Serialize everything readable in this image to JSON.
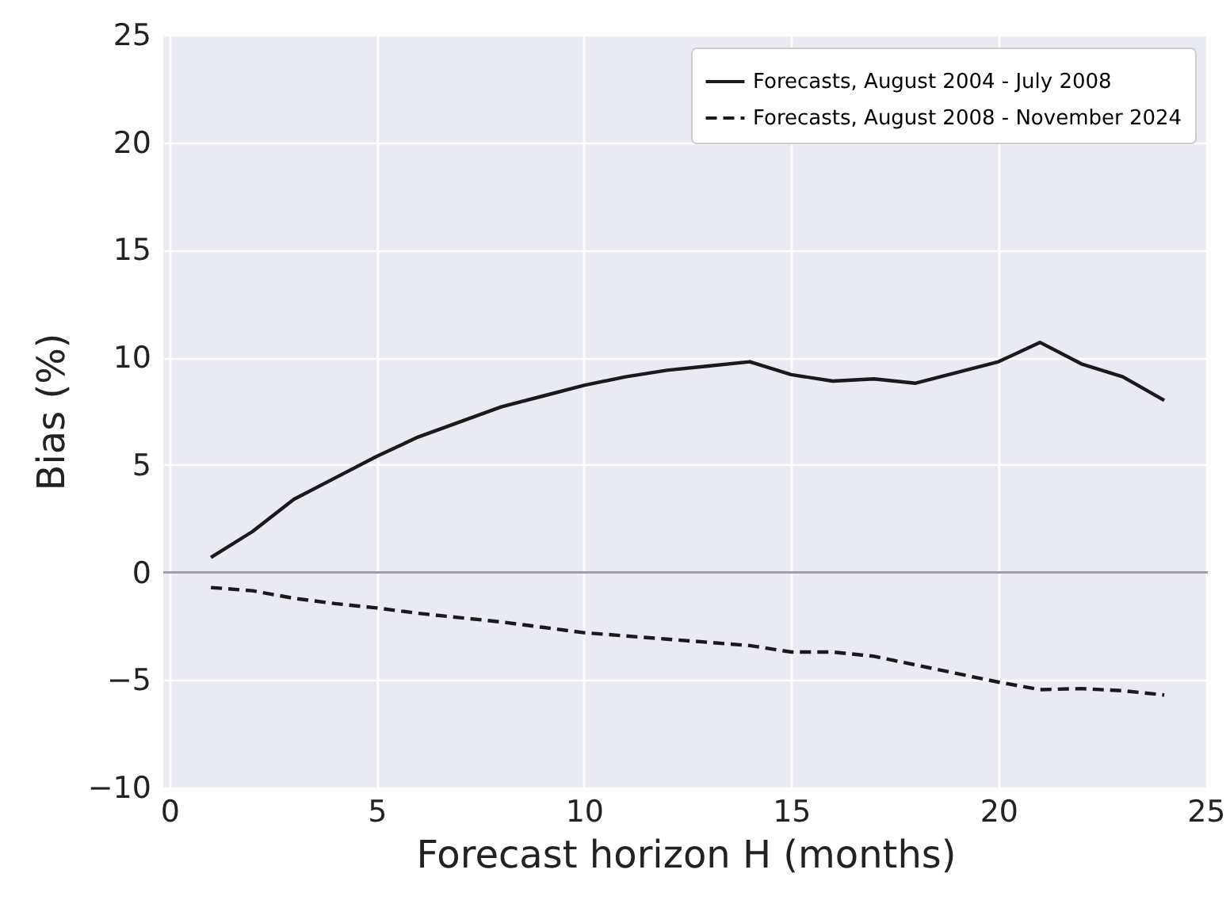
{
  "chart_data": {
    "type": "line",
    "xlabel": "Forecast horizon H (months)",
    "ylabel": "Bias (%)",
    "x": [
      1,
      2,
      3,
      4,
      5,
      6,
      7,
      8,
      9,
      10,
      11,
      12,
      13,
      14,
      15,
      16,
      17,
      18,
      19,
      20,
      21,
      22,
      23,
      24
    ],
    "series": [
      {
        "name": "Forecasts, August 2004 - July 2008",
        "color": "#1a1a1a",
        "line_style": "solid",
        "values": [
          0.7,
          1.9,
          3.4,
          4.4,
          5.4,
          6.3,
          7.0,
          7.7,
          8.2,
          8.7,
          9.1,
          9.4,
          9.6,
          9.8,
          9.2,
          8.9,
          9.0,
          8.8,
          9.3,
          9.8,
          10.7,
          9.7,
          9.1,
          8.0
        ]
      },
      {
        "name": "Forecasts, August 2008 - November 2024",
        "color": "#1a1a1a",
        "line_style": "dashed",
        "values": [
          -0.7,
          -0.85,
          -1.2,
          -1.45,
          -1.65,
          -1.9,
          -2.1,
          -2.3,
          -2.55,
          -2.8,
          -2.95,
          -3.1,
          -3.25,
          -3.4,
          -3.7,
          -3.7,
          -3.9,
          -4.3,
          -4.7,
          -5.1,
          -5.45,
          -5.4,
          -5.5,
          -5.7
        ]
      }
    ],
    "xlim": [
      -0.15,
      25.05
    ],
    "xticks": [
      0,
      5,
      10,
      15,
      20,
      25
    ],
    "ylim": [
      -10,
      25
    ],
    "yticks": [
      -10,
      -5,
      0,
      5,
      10,
      15,
      20,
      25
    ],
    "ref_lines": [
      {
        "axis": "y",
        "value": 0,
        "color": "#a0a0a0"
      }
    ],
    "grid": true,
    "legend": "top right",
    "marker": "none"
  }
}
